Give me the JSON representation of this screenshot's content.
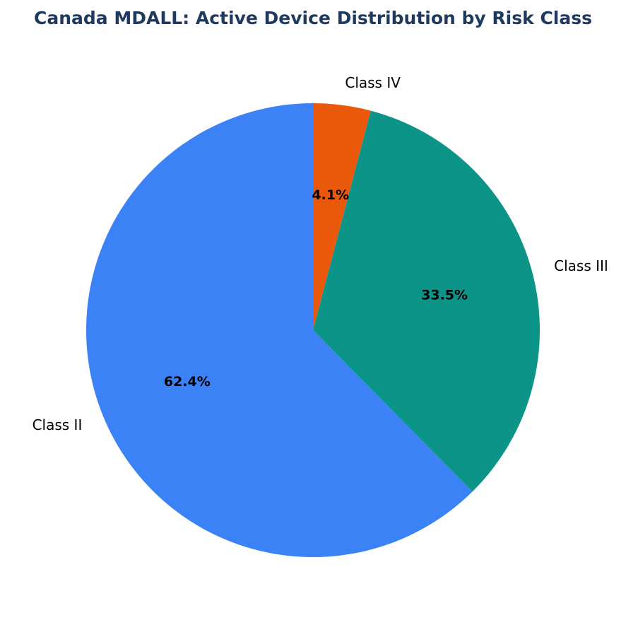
{
  "chart_data": {
    "type": "pie",
    "title": "Canada MDALL: Active Device Distribution by Risk Class",
    "title_color": "#1e3a5f",
    "start_angle_deg": 90,
    "direction": "clockwise",
    "slices": [
      {
        "label": "Class IV",
        "value": 4.1,
        "display": "4.1%",
        "color": "#ea580c"
      },
      {
        "label": "Class III",
        "value": 33.5,
        "display": "33.5%",
        "color": "#0d9488"
      },
      {
        "label": "Class II",
        "value": 62.4,
        "display": "62.4%",
        "color": "#3b82f6"
      }
    ]
  }
}
